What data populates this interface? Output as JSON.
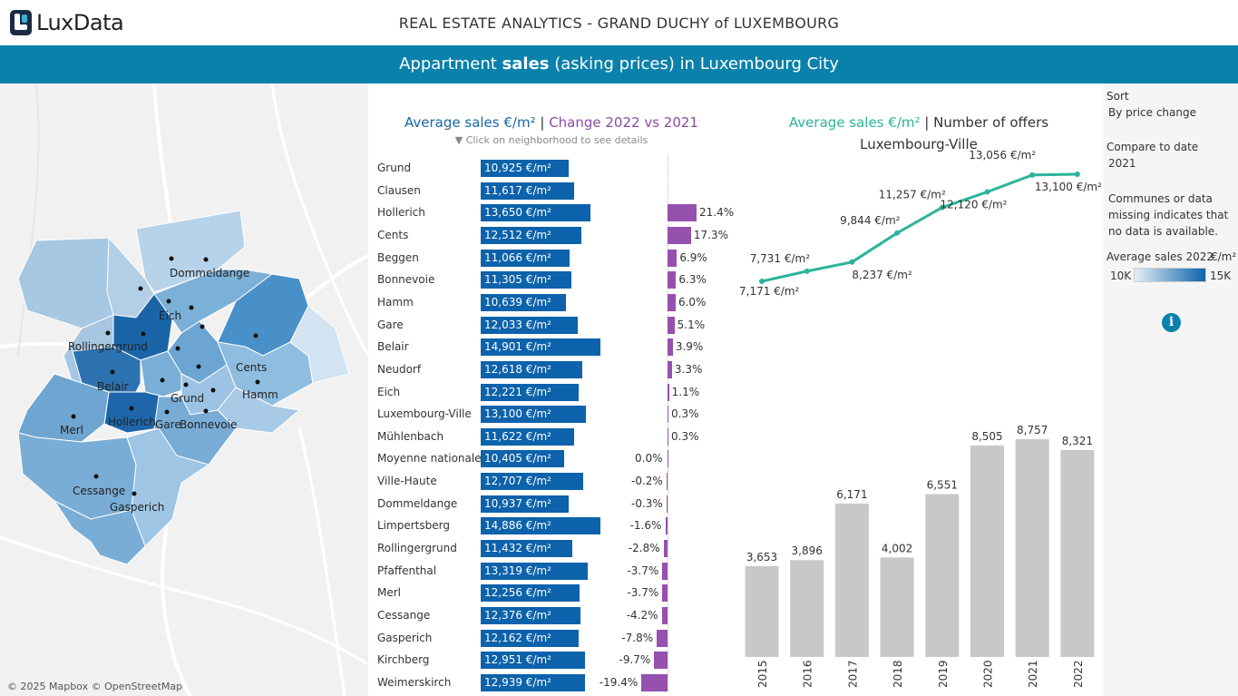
{
  "app": {
    "logo_lux": "Lux",
    "logo_data": "Data",
    "title": "REAL ESTATE ANALYTICS - GRAND DUCHY of LUXEMBOURG",
    "banner_pre": "Appartment ",
    "banner_bold": "sales",
    "banner_post": " (asking prices) in Luxembourg City"
  },
  "map": {
    "labels": [
      "Dommeldange",
      "Eich",
      "Rollingergrund",
      "Cents",
      "Belair",
      "Grund",
      "Hamm",
      "Hollerich",
      "Gare",
      "Bonnevoie",
      "Merl",
      "Cessange",
      "Gasperich"
    ],
    "attribution": "© 2025 Mapbox © OpenStreetMap",
    "colors": {
      "light": "#c9dcec",
      "mid": "#5b9bcd",
      "dark": "#1a65a8"
    }
  },
  "neighborhood_chart": {
    "header_a": "Average sales €/m²",
    "header_sep": " | ",
    "header_b": "Change 2022 vs 2021",
    "hint": "▼  Click on neighborhood to see details",
    "rows": [
      {
        "name": "Grund",
        "price": "10,925 €/m²",
        "price_value": 10925,
        "change": "",
        "change_value": null
      },
      {
        "name": "Clausen",
        "price": "11,617 €/m²",
        "price_value": 11617,
        "change": "",
        "change_value": null
      },
      {
        "name": "Hollerich",
        "price": "13,650 €/m²",
        "price_value": 13650,
        "change": "21.4%",
        "change_value": 21.4
      },
      {
        "name": "Cents",
        "price": "12,512 €/m²",
        "price_value": 12512,
        "change": "17.3%",
        "change_value": 17.3
      },
      {
        "name": "Beggen",
        "price": "11,066 €/m²",
        "price_value": 11066,
        "change": "6.9%",
        "change_value": 6.9
      },
      {
        "name": "Bonnevoie",
        "price": "11,305 €/m²",
        "price_value": 11305,
        "change": "6.3%",
        "change_value": 6.3
      },
      {
        "name": "Hamm",
        "price": "10,639 €/m²",
        "price_value": 10639,
        "change": "6.0%",
        "change_value": 6.0
      },
      {
        "name": "Gare",
        "price": "12,033 €/m²",
        "price_value": 12033,
        "change": "5.1%",
        "change_value": 5.1
      },
      {
        "name": "Belair",
        "price": "14,901 €/m²",
        "price_value": 14901,
        "change": "3.9%",
        "change_value": 3.9
      },
      {
        "name": "Neudorf",
        "price": "12,618 €/m²",
        "price_value": 12618,
        "change": "3.3%",
        "change_value": 3.3
      },
      {
        "name": "Eich",
        "price": "12,221 €/m²",
        "price_value": 12221,
        "change": "1.1%",
        "change_value": 1.1
      },
      {
        "name": "Luxembourg-Ville",
        "price": "13,100 €/m²",
        "price_value": 13100,
        "change": "0.3%",
        "change_value": 0.3
      },
      {
        "name": "Mühlenbach",
        "price": "11,622 €/m²",
        "price_value": 11622,
        "change": "0.3%",
        "change_value": 0.3
      },
      {
        "name": "Moyenne nationale",
        "price": "10,405 €/m²",
        "price_value": 10405,
        "change": "0.0%",
        "change_value": 0.0
      },
      {
        "name": "Ville-Haute",
        "price": "12,707 €/m²",
        "price_value": 12707,
        "change": "-0.2%",
        "change_value": -0.2
      },
      {
        "name": "Dommeldange",
        "price": "10,937 €/m²",
        "price_value": 10937,
        "change": "-0.3%",
        "change_value": -0.3
      },
      {
        "name": "Limpertsberg",
        "price": "14,886 €/m²",
        "price_value": 14886,
        "change": "-1.6%",
        "change_value": -1.6
      },
      {
        "name": "Rollingergrund",
        "price": "11,432 €/m²",
        "price_value": 11432,
        "change": "-2.8%",
        "change_value": -2.8
      },
      {
        "name": "Pfaffenthal",
        "price": "13,319 €/m²",
        "price_value": 13319,
        "change": "-3.7%",
        "change_value": -3.7
      },
      {
        "name": "Merl",
        "price": "12,256 €/m²",
        "price_value": 12256,
        "change": "-3.7%",
        "change_value": -3.7
      },
      {
        "name": "Cessange",
        "price": "12,376 €/m²",
        "price_value": 12376,
        "change": "-4.2%",
        "change_value": -4.2
      },
      {
        "name": "Gasperich",
        "price": "12,162 €/m²",
        "price_value": 12162,
        "change": "-7.8%",
        "change_value": -7.8
      },
      {
        "name": "Kirchberg",
        "price": "12,951 €/m²",
        "price_value": 12951,
        "change": "-9.7%",
        "change_value": -9.7
      },
      {
        "name": "Weimerskirch",
        "price": "12,939 €/m²",
        "price_value": 12939,
        "change": "-19.4%",
        "change_value": -19.4
      }
    ],
    "bar_color": "#0c62ab",
    "change_color": "#9650ae"
  },
  "trend_chart": {
    "header_a": "Average sales €/m²",
    "header_sep": " | ",
    "header_b": "Number of offers",
    "subtitle": "Luxembourg-Ville",
    "line_color": "#2bb49b",
    "bar_color": "#c8c8c8"
  },
  "chart_data": [
    {
      "type": "line",
      "x": [
        "2015",
        "2016",
        "2017",
        "2018",
        "2019",
        "2020",
        "2021",
        "2022"
      ],
      "values": [
        7171,
        7731,
        8237,
        9844,
        11257,
        12120,
        13056,
        13100
      ],
      "labels": [
        "7,171 €/m²",
        "7,731 €/m²",
        "8,237 €/m²",
        "9,844 €/m²",
        "11,257 €/m²",
        "12,120 €/m²",
        "13,056 €/m²",
        "13,100 €/m²"
      ]
    },
    {
      "type": "bar",
      "categories": [
        "2015",
        "2016",
        "2017",
        "2018",
        "2019",
        "2020",
        "2021",
        "2022"
      ],
      "values": [
        3653,
        3896,
        6171,
        4002,
        6551,
        8505,
        8757,
        8321
      ],
      "labels": [
        "3,653",
        "3,896",
        "6,171",
        "4,002",
        "6,551",
        "8,505",
        "8,757",
        "8,321"
      ]
    }
  ],
  "side_panel": {
    "sort_label": "Sort",
    "sort_value": "By price change",
    "compare_label": "Compare to date",
    "compare_value": "2021",
    "note": "Communes or data missing indicates that no data is available.",
    "legend_title": "Average sales 2022",
    "legend_unit": "€/m²",
    "legend_min": "10K",
    "legend_max": "15K"
  }
}
